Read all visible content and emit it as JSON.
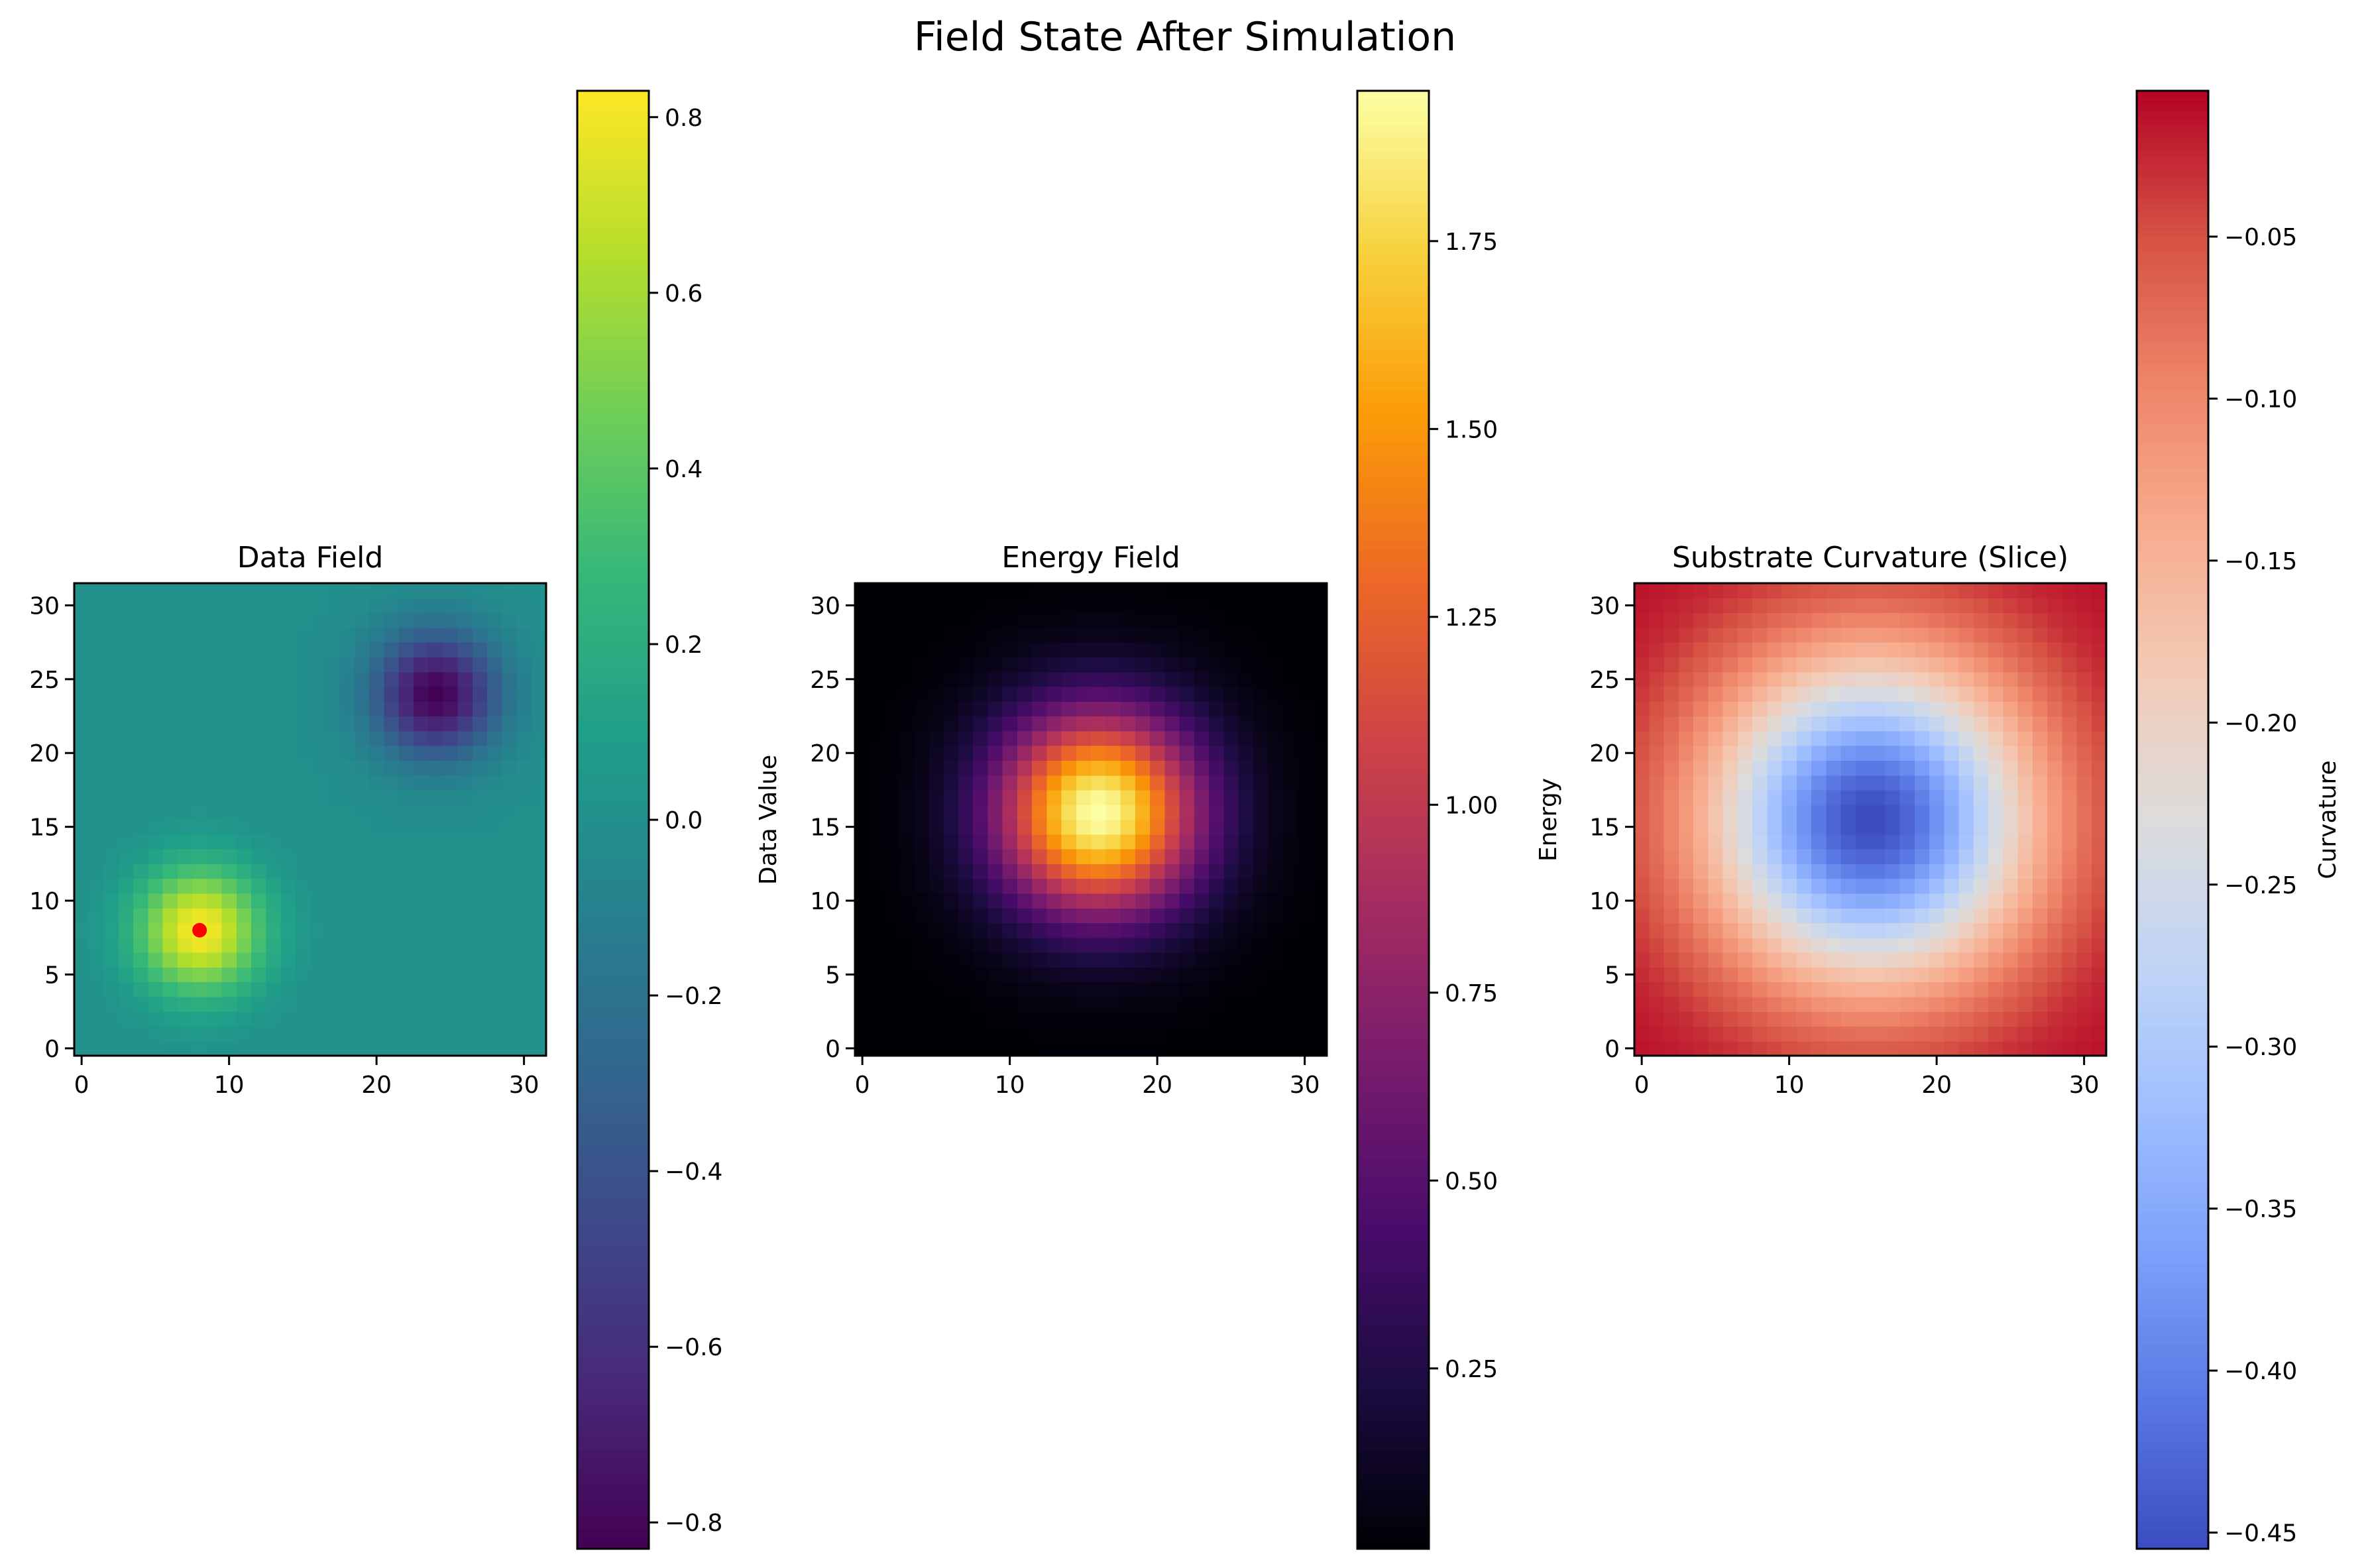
{
  "figure": {
    "title": "Field State After Simulation"
  },
  "chart_data": [
    {
      "type": "heatmap",
      "title": "Data Field",
      "colormap": "viridis",
      "grid_size": [
        32,
        32
      ],
      "xlim": [
        -0.5,
        31.5
      ],
      "ylim": [
        -0.5,
        31.5
      ],
      "xticks": [
        0,
        10,
        20,
        30
      ],
      "yticks": [
        0,
        5,
        10,
        15,
        20,
        25,
        30
      ],
      "field": {
        "model": "two_gaussians",
        "baseline": 0.0,
        "bumps": [
          {
            "cx": 8,
            "cy": 8,
            "amplitude": 0.83,
            "sigma": 3.0
          },
          {
            "cx": 24,
            "cy": 24,
            "amplitude": -0.83,
            "sigma": 3.0
          }
        ]
      },
      "marker": {
        "x": 8,
        "y": 8,
        "color": "#ff0000"
      },
      "colorbar": {
        "label": "Data Value",
        "range": [
          -0.83,
          0.83
        ],
        "ticks": [
          -0.8,
          -0.6,
          -0.4,
          -0.2,
          0.0,
          0.2,
          0.4,
          0.6,
          0.8
        ],
        "tick_labels": [
          "−0.8",
          "−0.6",
          "−0.4",
          "−0.2",
          "0.0",
          "0.2",
          "0.4",
          "0.6",
          "0.8"
        ]
      },
      "grid": false
    },
    {
      "type": "heatmap",
      "title": "Energy Field",
      "colormap": "inferno",
      "grid_size": [
        32,
        32
      ],
      "xlim": [
        -0.5,
        31.5
      ],
      "ylim": [
        -0.5,
        31.5
      ],
      "xticks": [
        0,
        10,
        20,
        30
      ],
      "yticks": [
        0,
        5,
        10,
        15,
        20,
        25,
        30
      ],
      "field": {
        "model": "gaussian_center",
        "cx": 16,
        "cy": 16,
        "amplitude": 1.95,
        "sigma": 4.8,
        "baseline": 0.01
      },
      "colorbar": {
        "label": "Energy",
        "range": [
          0.01,
          1.95
        ],
        "ticks": [
          0.25,
          0.5,
          0.75,
          1.0,
          1.25,
          1.5,
          1.75
        ],
        "tick_labels": [
          "0.25",
          "0.50",
          "0.75",
          "1.00",
          "1.25",
          "1.50",
          "1.75"
        ]
      },
      "grid": false
    },
    {
      "type": "heatmap",
      "title": "Substrate Curvature (Slice)",
      "colormap": "coolwarm",
      "grid_size": [
        32,
        32
      ],
      "xlim": [
        -0.5,
        31.5
      ],
      "ylim": [
        -0.5,
        31.5
      ],
      "xticks": [
        0,
        10,
        20,
        30
      ],
      "yticks": [
        0,
        5,
        10,
        15,
        20,
        25,
        30
      ],
      "field": {
        "model": "gaussian_center",
        "cx": 15.5,
        "cy": 15.5,
        "amplitude": -0.447,
        "sigma": 7.5,
        "baseline": -0.008
      },
      "colorbar": {
        "label": "Curvature",
        "range": [
          -0.455,
          -0.005
        ],
        "ticks": [
          -0.45,
          -0.4,
          -0.35,
          -0.3,
          -0.25,
          -0.2,
          -0.15,
          -0.1,
          -0.05
        ],
        "tick_labels": [
          "−0.45",
          "−0.40",
          "−0.35",
          "−0.30",
          "−0.25",
          "−0.20",
          "−0.15",
          "−0.10",
          "−0.05"
        ]
      },
      "grid": false
    }
  ]
}
